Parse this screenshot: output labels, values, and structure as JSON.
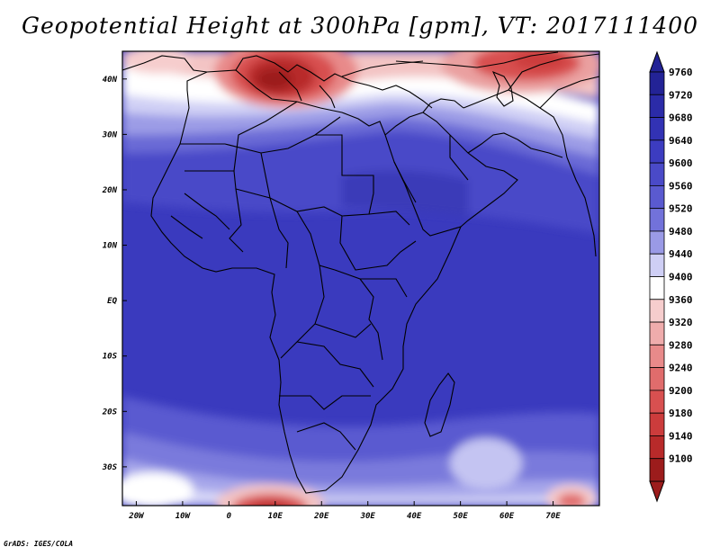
{
  "title": "Geopotential Height at 300hPa [gpm], VT: 2017111400",
  "footer": "GrADS: IGES/COLA",
  "map": {
    "lon_range": [
      -23,
      80
    ],
    "lat_range": [
      -37,
      45
    ],
    "lon_ticks": [
      {
        "value": -20,
        "label": "20W"
      },
      {
        "value": -10,
        "label": "10W"
      },
      {
        "value": 0,
        "label": "0"
      },
      {
        "value": 10,
        "label": "10E"
      },
      {
        "value": 20,
        "label": "20E"
      },
      {
        "value": 30,
        "label": "30E"
      },
      {
        "value": 40,
        "label": "40E"
      },
      {
        "value": 50,
        "label": "50E"
      },
      {
        "value": 60,
        "label": "60E"
      },
      {
        "value": 70,
        "label": "70E"
      }
    ],
    "lat_ticks": [
      {
        "value": 40,
        "label": "40N"
      },
      {
        "value": 30,
        "label": "30N"
      },
      {
        "value": 20,
        "label": "20N"
      },
      {
        "value": 10,
        "label": "10N"
      },
      {
        "value": 0,
        "label": "EQ"
      },
      {
        "value": -10,
        "label": "10S"
      },
      {
        "value": -20,
        "label": "20S"
      },
      {
        "value": -30,
        "label": "30S"
      }
    ]
  },
  "colorbar": {
    "levels": [
      {
        "label": "9760",
        "color": "#232396"
      },
      {
        "label": "9720",
        "color": "#2b2ba8"
      },
      {
        "label": "9680",
        "color": "#3232b4"
      },
      {
        "label": "9640",
        "color": "#3c3cc0"
      },
      {
        "label": "9600",
        "color": "#4a4ac8"
      },
      {
        "label": "9560",
        "color": "#5a5ad0"
      },
      {
        "label": "9520",
        "color": "#7272da"
      },
      {
        "label": "9480",
        "color": "#9a9ae6"
      },
      {
        "label": "9440",
        "color": "#cfcff5"
      },
      {
        "label": "9400",
        "color": "#ffffff"
      },
      {
        "label": "9360",
        "color": "#f6cdcd"
      },
      {
        "label": "9320",
        "color": "#efacac"
      },
      {
        "label": "9280",
        "color": "#e88a8a"
      },
      {
        "label": "9240",
        "color": "#e06c6c"
      },
      {
        "label": "9200",
        "color": "#d85050"
      },
      {
        "label": "9180",
        "color": "#cc3c3c"
      },
      {
        "label": "9140",
        "color": "#b82a2a"
      },
      {
        "label": "9100",
        "color": "#9c1c1c"
      }
    ]
  }
}
